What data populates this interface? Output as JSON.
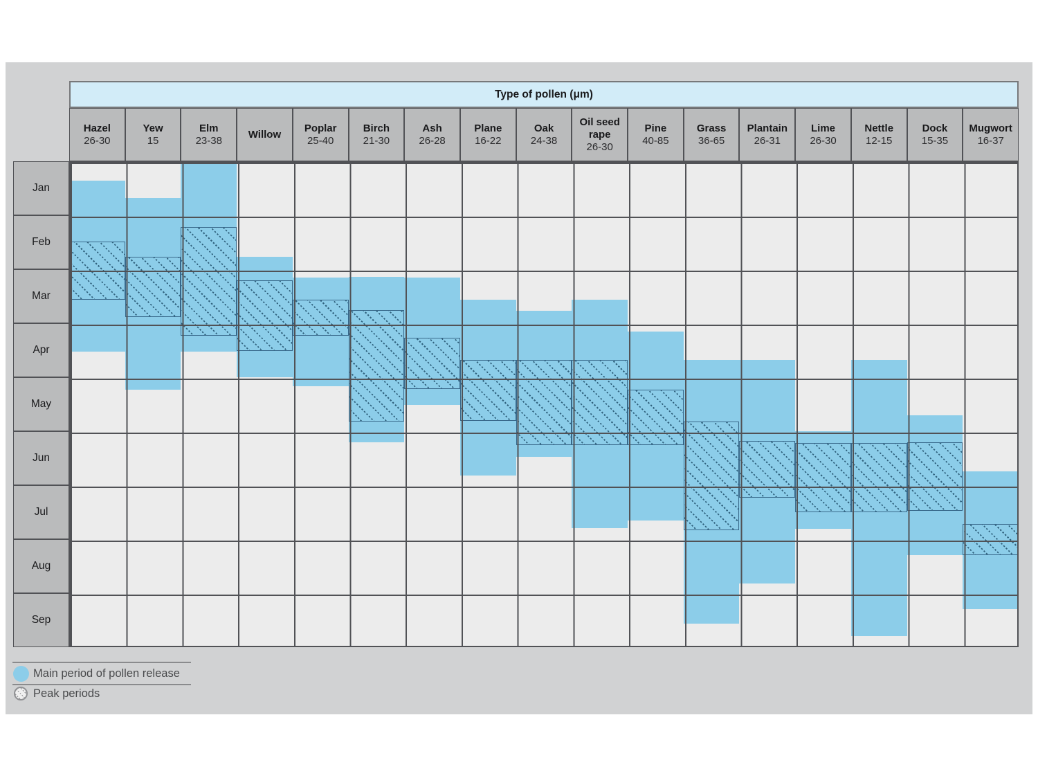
{
  "chart_data": {
    "type": "gantt",
    "title": "Type of pollen (μm)",
    "row_axis_months": [
      "Jan",
      "Feb",
      "Mar",
      "Apr",
      "May",
      "Jun",
      "Jul",
      "Aug",
      "Sep"
    ],
    "value_units": "month index, 0 = start of Jan, 9 = end of Sep",
    "series": [
      {
        "name": "Hazel",
        "size_um": "26-30",
        "main": [
          0.36,
          3.52
        ],
        "peak": [
          1.49,
          2.56
        ]
      },
      {
        "name": "Yew",
        "size_um": "15",
        "main": [
          0.68,
          4.23
        ],
        "peak": [
          1.77,
          2.89
        ]
      },
      {
        "name": "Elm",
        "size_um": "23-38",
        "main": [
          0.0,
          3.52
        ],
        "peak": [
          1.22,
          3.23
        ]
      },
      {
        "name": "Willow",
        "size_um": "",
        "main": [
          1.77,
          4.0
        ],
        "peak": [
          2.21,
          3.51
        ]
      },
      {
        "name": "Poplar",
        "size_um": "25-40",
        "main": [
          2.15,
          4.17
        ],
        "peak": [
          2.57,
          3.23
        ]
      },
      {
        "name": "Birch",
        "size_um": "21-30",
        "main": [
          2.14,
          5.2
        ],
        "peak": [
          2.76,
          4.82
        ]
      },
      {
        "name": "Ash",
        "size_um": "26-28",
        "main": [
          2.16,
          4.51
        ],
        "peak": [
          3.27,
          4.22
        ]
      },
      {
        "name": "Plane",
        "size_um": "16-22",
        "main": [
          2.57,
          5.82
        ],
        "peak": [
          3.68,
          4.81
        ]
      },
      {
        "name": "Oak",
        "size_um": "24-38",
        "main": [
          2.77,
          5.48
        ],
        "peak": [
          3.68,
          5.26
        ]
      },
      {
        "name": "Oil seed rape",
        "size_um": "26-30",
        "main": [
          2.57,
          6.8
        ],
        "peak": [
          3.68,
          5.26
        ]
      },
      {
        "name": "Pine",
        "size_um": "40-85",
        "main": [
          3.15,
          6.66
        ],
        "peak": [
          4.23,
          5.26
        ]
      },
      {
        "name": "Grass",
        "size_um": "36-65",
        "main": [
          3.68,
          8.56
        ],
        "peak": [
          4.82,
          6.83
        ]
      },
      {
        "name": "Plantain",
        "size_um": "26-31",
        "main": [
          3.68,
          7.82
        ],
        "peak": [
          5.18,
          6.23
        ]
      },
      {
        "name": "Lime",
        "size_um": "26-30",
        "main": [
          5.0,
          6.81
        ],
        "peak": [
          5.22,
          6.5
        ]
      },
      {
        "name": "Nettle",
        "size_um": "12-15",
        "main": [
          3.68,
          8.8
        ],
        "peak": [
          5.22,
          6.5
        ]
      },
      {
        "name": "Dock",
        "size_um": "15-35",
        "main": [
          4.7,
          7.3
        ],
        "peak": [
          5.21,
          6.47
        ]
      },
      {
        "name": "Mugwort",
        "size_um": "16-37",
        "main": [
          5.74,
          8.3
        ],
        "peak": [
          6.72,
          7.3
        ]
      }
    ],
    "legend": {
      "main_label": "Main period of pollen release",
      "peak_label": "Peak periods"
    },
    "colors": {
      "main_bar": "#8ccde9",
      "peak_hatch_line": "#31637f",
      "title_band": "#d2ecf8",
      "header_bg": "#babbbc",
      "cell_bg": "#ececec",
      "grid_line": "#515256",
      "canvas_bg": "#d1d2d3"
    }
  }
}
